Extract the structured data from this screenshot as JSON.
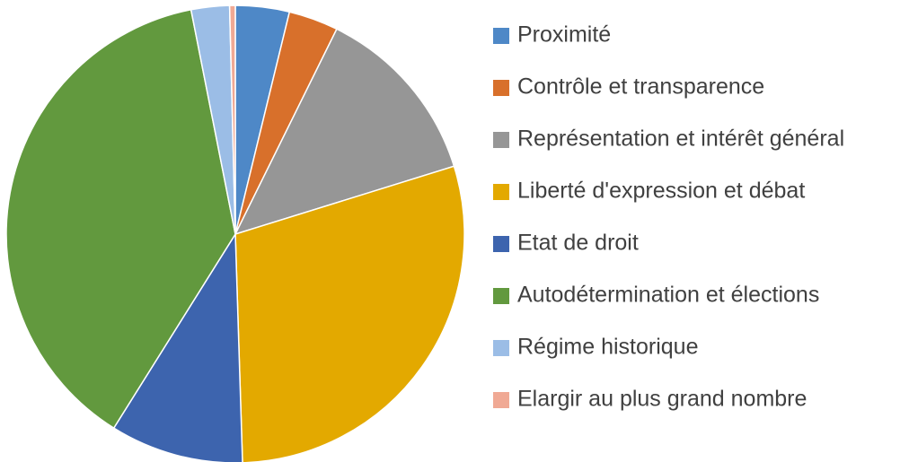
{
  "chart_data": {
    "type": "pie",
    "categories": [
      "Proximité",
      "Contrôle et transparence",
      "Représentation et intérêt général",
      "Liberté d'expression et débat",
      "Etat de droit",
      "Autodétermination et élections",
      "Régime historique",
      "Elargir au plus grand nombre"
    ],
    "values": [
      3.8,
      3.5,
      12.9,
      29.3,
      9.4,
      38,
      2.7,
      0.4
    ],
    "colors": [
      "#4e88c7",
      "#d8702b",
      "#969696",
      "#e3a900",
      "#3d64ae",
      "#62993e",
      "#9bbde6",
      "#f0a994"
    ],
    "legend": "right"
  }
}
